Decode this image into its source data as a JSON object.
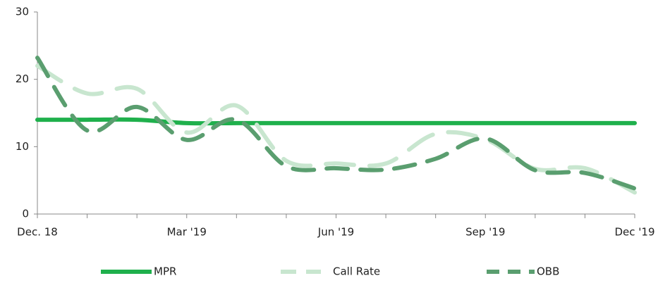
{
  "chart_data": {
    "type": "line",
    "categories": [
      "Dec. 18",
      null,
      null,
      "Mar '19",
      null,
      null,
      "Jun '19",
      null,
      null,
      "Sep  '19",
      null,
      null,
      "Dec  '19"
    ],
    "series": [
      {
        "name": "MPR",
        "color": "#1fb04c",
        "dash": "solid",
        "values": [
          14,
          14,
          14,
          13.5,
          13.5,
          13.5,
          13.5,
          13.5,
          13.5,
          13.5,
          13.5,
          13.5,
          13.5
        ]
      },
      {
        "name": "Call Rate",
        "color": "#c8e6cf",
        "dash": "long",
        "values": [
          22,
          17.9,
          18.6,
          12.1,
          16.1,
          7.9,
          7.5,
          7.5,
          11.9,
          11.1,
          6.7,
          6.8,
          3.2
        ]
      },
      {
        "name": "OBB",
        "color": "#5a9e6f",
        "dash": "medium",
        "values": [
          23.2,
          12.4,
          15.9,
          11,
          14,
          7.1,
          6.8,
          6.6,
          8.2,
          11.2,
          6.5,
          6.1,
          3.8
        ]
      }
    ],
    "ylim": [
      0,
      30
    ],
    "yticks": [
      0,
      10,
      20,
      30
    ]
  }
}
